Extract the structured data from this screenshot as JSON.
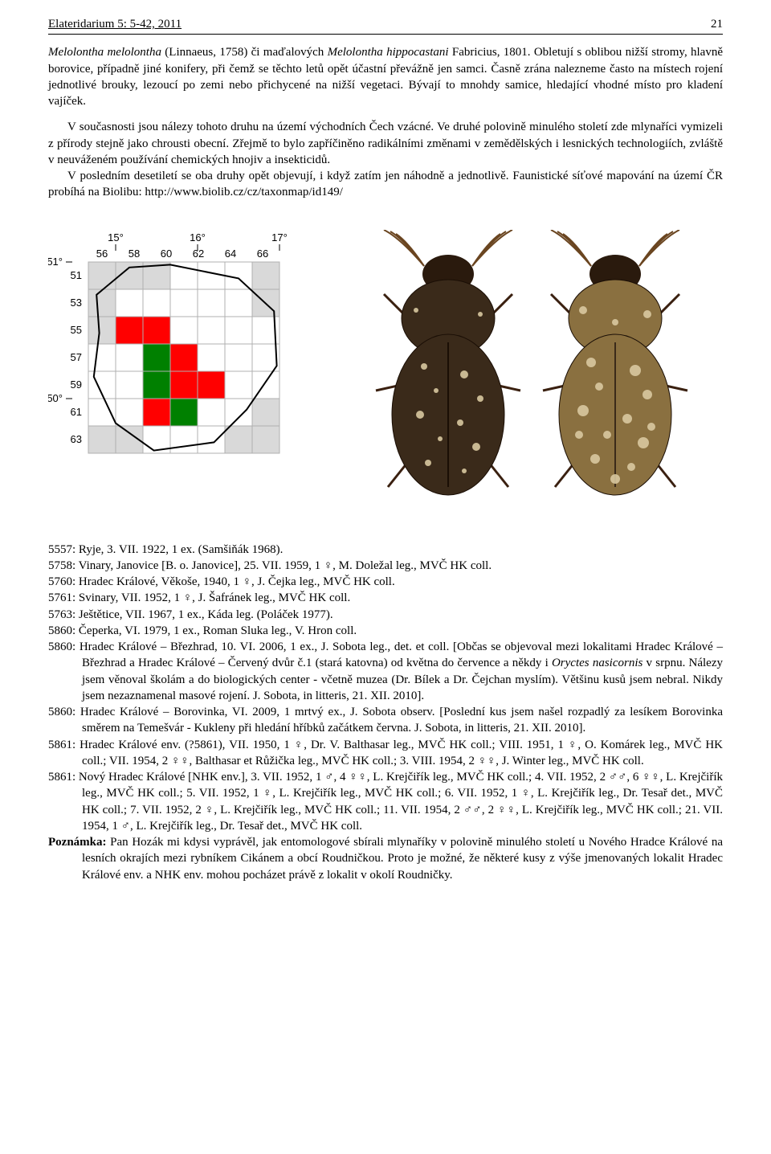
{
  "header": {
    "journal": "Elateridarium 5: 5-42, 2011",
    "page": "21"
  },
  "intro": {
    "p1": "Melolontha melolontha (Linnaeus, 1758) či maďalových Melolontha hippocastani Fabricius, 1801. Obletují s oblibou nižší stromy, hlavně borovice, případně jiné konifery, při čemž se těchto letů opět účastní převážně jen samci. Časně zrána nalezneme často na místech rojení jednotlivé brouky, lezoucí po zemi nebo přichycené na nižší vegetaci. Bývají to mnohdy samice, hledající vhodné místo pro kladení vajíček.",
    "p2": "V současnosti jsou nálezy tohoto druhu na území východních Čech vzácné. Ve druhé polovině minulého století zde mlynaříci vymizeli z přírody stejně jako chrousti obecní. Zřejmě to bylo zapříčiněno radikálními změnami v zemědělských i lesnických technologiích, zvláště v neuváženém používání chemických hnojiv a insekticidů.",
    "p3": "V posledním desetiletí se oba druhy opět objevují, i když zatím jen náhodně a jednotlivě. Faunistické síťové mapování na území ČR probíhá na Biolibu: http://www.biolib.cz/cz/taxonmap/id149/"
  },
  "gridmap": {
    "lon_labels": [
      {
        "deg": "15°",
        "col": 1
      },
      {
        "deg": "16°",
        "col": 4
      },
      {
        "deg": "17°",
        "col": 7
      }
    ],
    "col_labels": [
      "56",
      "58",
      "60",
      "62",
      "64",
      "66"
    ],
    "lat_labels": [
      {
        "deg": "51°",
        "row": 0
      },
      {
        "deg": "50°",
        "row": 5
      }
    ],
    "row_labels": [
      "51",
      "53",
      "55",
      "57",
      "59",
      "61",
      "63"
    ],
    "cols": 7,
    "rows": 7,
    "cells_out": [
      [
        0,
        0
      ],
      [
        1,
        0
      ],
      [
        2,
        0
      ],
      [
        6,
        0
      ],
      [
        0,
        1
      ],
      [
        6,
        1
      ],
      [
        0,
        2
      ],
      [
        6,
        5
      ],
      [
        0,
        6
      ],
      [
        1,
        6
      ],
      [
        5,
        6
      ],
      [
        6,
        6
      ]
    ],
    "cells_red": [
      [
        1,
        2
      ],
      [
        2,
        2
      ],
      [
        3,
        3
      ],
      [
        3,
        4
      ],
      [
        4,
        4
      ],
      [
        2,
        5
      ]
    ],
    "cells_green": [
      [
        2,
        3
      ],
      [
        2,
        4
      ],
      [
        3,
        5
      ]
    ],
    "colors": {
      "bg": "#ffffff",
      "grid": "#b0b0b0",
      "out": "#d9d9d9",
      "red": "#ff0000",
      "green": "#008000",
      "outline": "#000000"
    }
  },
  "records": [
    {
      "text": "5557: Ryje, 3. VII. 1922, 1 ex. (Samšiňák 1968)."
    },
    {
      "text": "5758: Vinary, Janovice [B. o. Janovice], 25. VII. 1959, 1 ♀, M. Doležal leg., MVČ HK coll."
    },
    {
      "text": "5760: Hradec Králové, Věkoše, 1940, 1 ♀, J. Čejka leg., MVČ HK coll."
    },
    {
      "text": "5761: Svinary, VII. 1952, 1 ♀, J. Šafránek leg., MVČ HK coll."
    },
    {
      "text": "5763: Ještětice, VII. 1967, 1 ex., Káda leg. (Poláček 1977)."
    },
    {
      "text": "5860: Čeperka, VI. 1979, 1 ex., Roman Sluka leg., V. Hron coll."
    },
    {
      "text": "5860: Hradec Králové – Březhrad, 10. VI. 2006, 1 ex., J. Sobota leg., det. et coll. [Občas se objevoval mezi lokalitami Hradec Králové – Březhrad a Hradec Králové – Červený dvůr č.1 (stará katovna) od května do července a někdy i Oryctes nasicornis v srpnu. Nálezy jsem věnoval školám a do biologických center - včetně muzea (Dr. Bílek a Dr. Čejchan myslím). Většinu kusů jsem nebral. Nikdy jsem nezaznamenal masové rojení. J. Sobota, in litteris, 21. XII. 2010]."
    },
    {
      "text": "5860: Hradec Králové – Borovinka, VI. 2009, 1 mrtvý ex., J. Sobota observ. [Poslední kus jsem našel rozpadlý za lesíkem Borovinka směrem na Temešvár - Kukleny při hledání hříbků začátkem června. J. Sobota, in litteris, 21. XII. 2010]."
    },
    {
      "text": "5861: Hradec Králové env. (?5861), VII. 1950, 1 ♀, Dr. V. Balthasar leg., MVČ HK coll.; VIII. 1951, 1 ♀, O. Komárek leg., MVČ HK coll.; VII. 1954, 2 ♀♀, Balthasar et Růžička leg., MVČ HK coll.; 3. VIII. 1954, 2 ♀♀, J. Winter leg., MVČ HK coll."
    },
    {
      "text": "5861: Nový Hradec Králové [NHK env.], 3. VII. 1952, 1 ♂, 4 ♀♀, L. Krejčiřík leg., MVČ HK coll.; 4. VII. 1952, 2 ♂♂, 6 ♀♀, L. Krejčiřík leg., MVČ HK coll.; 5. VII. 1952, 1 ♀, L. Krejčiřík leg., MVČ HK coll.; 6. VII. 1952, 1 ♀, L. Krejčiřík leg., Dr. Tesař det., MVČ HK coll.; 7. VII. 1952, 2 ♀, L. Krejčiřík leg., MVČ HK coll.; 11. VII. 1954, 2 ♂♂, 2 ♀♀, L. Krejčiřík leg., MVČ HK coll.; 21. VII. 1954, 1 ♂, L. Krejčiřík leg., Dr. Tesař det., MVČ HK coll."
    }
  ],
  "note": {
    "label": "Poznámka:",
    "text": " Pan Hozák mi kdysi vyprávěl, jak entomologové sbírali mlynaříky v polovině minulého století u Nového Hradce Králové na lesních okrajích mezi rybníkem Cikánem a obcí Roudničkou. Proto je možné, že některé kusy z výše jmenovaných lokalit Hradec Králové env. a NHK env. mohou pocházet právě z lokalit v okolí Roudničky."
  }
}
